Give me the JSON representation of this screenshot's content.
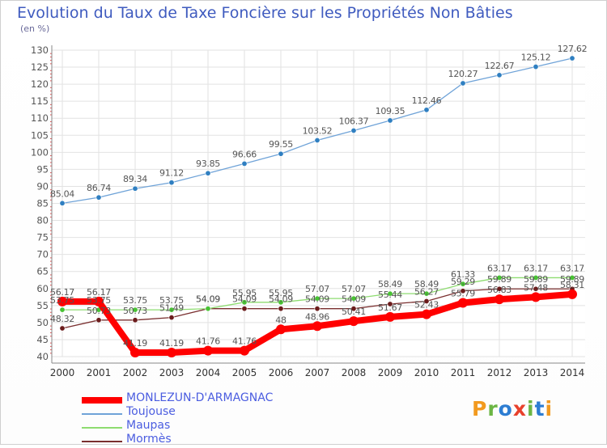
{
  "page": {
    "title": "Evolution du Taux de Taxe Foncière sur les Propriétés Non Bâties",
    "unit": "(en %)",
    "logo": "Proxiti",
    "logo_colors": [
      "#f29a1f",
      "#6cb644",
      "#2d7dd2",
      "#e8412c",
      "#6cb644",
      "#2d7dd2",
      "#f29a1f"
    ]
  },
  "chart_data": {
    "type": "line",
    "title": "Evolution du Taux de Taxe Foncière sur les Propriétés Non Bâties",
    "ylabel": "(en %)",
    "xlabel": "",
    "ylim": [
      40,
      130
    ],
    "yticks": [
      40,
      45,
      50,
      55,
      60,
      65,
      70,
      75,
      80,
      85,
      90,
      95,
      100,
      105,
      110,
      115,
      120,
      125,
      130
    ],
    "categories": [
      "2000",
      "2001",
      "2002",
      "2003",
      "2004",
      "2005",
      "2006",
      "2007",
      "2008",
      "2009",
      "2010",
      "2011",
      "2012",
      "2013",
      "2014"
    ],
    "grid": true,
    "legend_position": "bottom-left",
    "series": [
      {
        "name": "MONLEZUN-D'ARMAGNAC",
        "color": "#ff0000",
        "thick": true,
        "values": [
          56.17,
          56.17,
          41.19,
          41.19,
          41.76,
          41.76,
          48,
          48.96,
          50.41,
          51.67,
          52.43,
          55.79,
          56.83,
          57.48,
          58.31
        ],
        "labels": [
          "56.17",
          "56.17",
          "41.19",
          "41.19",
          "41.76",
          "41.76",
          "48",
          "48.96",
          "50.41",
          "51.67",
          "52.43",
          "55.79",
          "56.83",
          "57.48",
          "58.31"
        ]
      },
      {
        "name": "Toujouse",
        "color": "#6fa3d8",
        "marker": "#2f7fc1",
        "values": [
          85.04,
          86.74,
          89.34,
          91.12,
          93.85,
          96.66,
          99.55,
          103.52,
          106.37,
          109.35,
          112.46,
          120.27,
          122.67,
          125.12,
          127.62
        ],
        "labels": [
          "85.04",
          "86.74",
          "89.34",
          "91.12",
          "93.85",
          "96.66",
          "99.55",
          "103.52",
          "106.37",
          "109.35",
          "112.46",
          "120.27",
          "122.67",
          "125.12",
          "127.62"
        ]
      },
      {
        "name": "Maupas",
        "color": "#8edc70",
        "marker": "#48c234",
        "values": [
          53.75,
          53.75,
          53.75,
          53.75,
          54.09,
          55.95,
          55.95,
          57.07,
          57.07,
          58.49,
          58.49,
          61.33,
          63.17,
          63.17,
          63.17
        ],
        "labels": [
          "53.75",
          "53.75",
          "53.75",
          "53.75",
          "54.09",
          "55.95",
          "55.95",
          "57.07",
          "57.07",
          "58.49",
          "58.49",
          "61.33",
          "63.17",
          "63.17",
          "63.17"
        ]
      },
      {
        "name": "Mormès",
        "color": "#7a2f2f",
        "marker": "#6b1c1c",
        "values": [
          48.32,
          50.73,
          50.73,
          51.49,
          54.09,
          54.09,
          54.09,
          54.09,
          54.09,
          55.44,
          56.27,
          59.29,
          59.89,
          59.89,
          59.89
        ],
        "labels": [
          "48.32",
          "50.73",
          "50.73",
          "51.49",
          "54.09",
          "54.09",
          "54.09",
          "54.09",
          "54.09",
          "55.44",
          "56.27",
          "59.29",
          "59.89",
          "59.89",
          "59.89"
        ]
      }
    ]
  }
}
